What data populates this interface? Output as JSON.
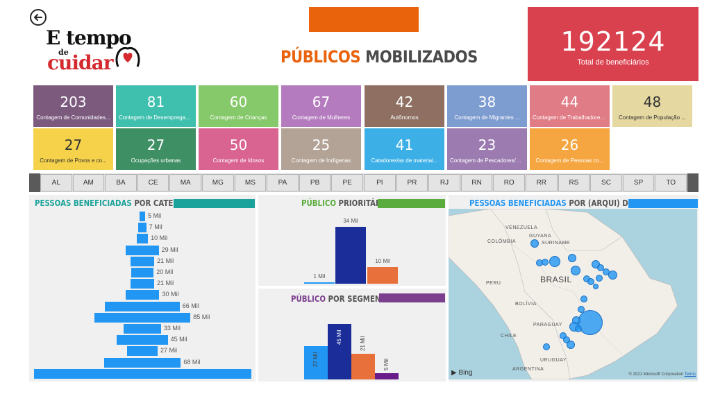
{
  "header": {
    "logo_line1": "E tempo",
    "logo_line2": "de",
    "logo_line3": "cuidar",
    "title_part1": "PÚBLICOS",
    "title_part2": "MOBILIZADOS",
    "total_value": "192124",
    "total_label": "Total de beneficiários"
  },
  "kpis": [
    {
      "value": "203",
      "label": "Contagem de Comunidades...",
      "color": "#7b5a7e"
    },
    {
      "value": "81",
      "label": "Contagem de Desempregados...",
      "color": "#3fbfad"
    },
    {
      "value": "60",
      "label": "Contagem de Crianças",
      "color": "#86c96a"
    },
    {
      "value": "67",
      "label": "Contagem de Mulheres",
      "color": "#b57bbf"
    },
    {
      "value": "42",
      "label": "Autônomos",
      "color": "#8e6f62"
    },
    {
      "value": "38",
      "label": "Contagem de Migrantes ...",
      "color": "#7d9ccf"
    },
    {
      "value": "44",
      "label": "Contagem de Trabalhadores...",
      "color": "#e07c86"
    },
    {
      "value": "48",
      "label": "Contagem de População ...",
      "color": "#e5d8a0",
      "dark": true
    },
    {
      "value": "27",
      "label": "Contagem de Povos e co...",
      "color": "#f5d24a",
      "dark": true
    },
    {
      "value": "27",
      "label": "Ocupações urbanas",
      "color": "#3f8f64"
    },
    {
      "value": "50",
      "label": "Contagem de Idosos",
      "color": "#d96391"
    },
    {
      "value": "25",
      "label": "Contagem de Indígenas",
      "color": "#b2a396"
    },
    {
      "value": "41",
      "label": "Catadores/as de materiai...",
      "color": "#3cb0e6"
    },
    {
      "value": "23",
      "label": "Contagem de Pescadores/as ...",
      "color": "#9b7bb0"
    },
    {
      "value": "26",
      "label": "Contagem de Pessoas co...",
      "color": "#f5a640"
    }
  ],
  "states": [
    "AL",
    "AM",
    "BA",
    "CE",
    "MA",
    "MG",
    "MS",
    "PA",
    "PB",
    "PE",
    "PI",
    "PR",
    "RJ",
    "RN",
    "RO",
    "RR",
    "RS",
    "SC",
    "SP",
    "TO"
  ],
  "category_panel": {
    "title_part1": "PESSOAS BENEFICIADAS",
    "title_part2": "POR CATEGORIA",
    "strip_color": "#1aa39a",
    "chart_data": {
      "type": "bar",
      "orientation": "horizontal-centered",
      "values": [
        5,
        7,
        10,
        29,
        21,
        20,
        21,
        30,
        66,
        85,
        33,
        45,
        27,
        68,
        192
      ],
      "labels": [
        "5 Mil",
        "7 Mil",
        "10 Mil",
        "29 Mil",
        "21 Mil",
        "20 Mil",
        "21 Mil",
        "30 Mil",
        "66 Mil",
        "85 Mil",
        "33 Mil",
        "45 Mil",
        "27 Mil",
        "68 Mil",
        ""
      ],
      "unit": "Mil"
    }
  },
  "priority_panel": {
    "title_part1": "PÚBLICO",
    "title_part2": "PRIORITÁRIO",
    "strip_color": "#5aad3c",
    "chart_data": {
      "type": "bar",
      "values": [
        1,
        34,
        10
      ],
      "labels": [
        "1 Mil",
        "34 Mil",
        "10 Mil"
      ],
      "colors": [
        "#2196f3",
        "#1a2d99",
        "#e8703a"
      ],
      "ylim": [
        0,
        34
      ]
    }
  },
  "segment_panel": {
    "title_part1": "PÚBLICO",
    "title_part2": "POR SEGMENTO",
    "strip_color": "#7b3f8e",
    "chart_data": {
      "type": "bar",
      "values": [
        27,
        45,
        21,
        5
      ],
      "labels": [
        "27 Mil",
        "45 Mil",
        "21 Mil",
        "5 Mil"
      ],
      "colors": [
        "#2196f3",
        "#1a2d99",
        "#e8703a",
        "#6a1b8a"
      ],
      "ylim": [
        0,
        45
      ]
    }
  },
  "map_panel": {
    "title_part1": "PESSOAS BENEFICIADAS",
    "title_part2": "POR (ARQUI) DIOCESE",
    "strip_color": "#2196f3",
    "labels": {
      "venezuela": "VENEZUELA",
      "colombia": "COLÔMBIA",
      "guyana": "GUYANA",
      "suriname": "SURINAME",
      "brasil": "BRASIL",
      "peru": "PERU",
      "bolivia": "BOLÍVIA",
      "paraguay": "PARAGUAY",
      "chile": "CHILE",
      "uruguay": "URUGUAY",
      "argentina": "ARGENTINA"
    },
    "bing": "Bing",
    "copyright": "© 2021 Microsoft Corporation",
    "terms": "Terms"
  }
}
